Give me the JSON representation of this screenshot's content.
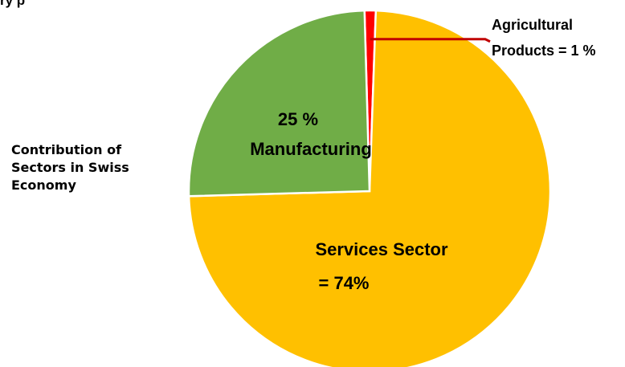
{
  "top_cut_text": "ry p",
  "chart_data": {
    "type": "pie",
    "title": "Contribution of Sectors in Swiss Economy",
    "slices": [
      {
        "label": "Services Sector",
        "value": 74,
        "color": "#FFC000",
        "label_lines": [
          "Services Sector",
          "= 74%"
        ]
      },
      {
        "label": "Manufacturing",
        "value": 25,
        "color": "#70AD47",
        "label_lines": [
          "25 %",
          "Manufacturing"
        ]
      },
      {
        "label": "Agricultural Products",
        "value": 1,
        "color": "#FF0000",
        "label_lines": [
          "Agricultural",
          "Products = 1 %"
        ]
      }
    ],
    "leader_line_color": "#C00000",
    "legend": "none"
  }
}
